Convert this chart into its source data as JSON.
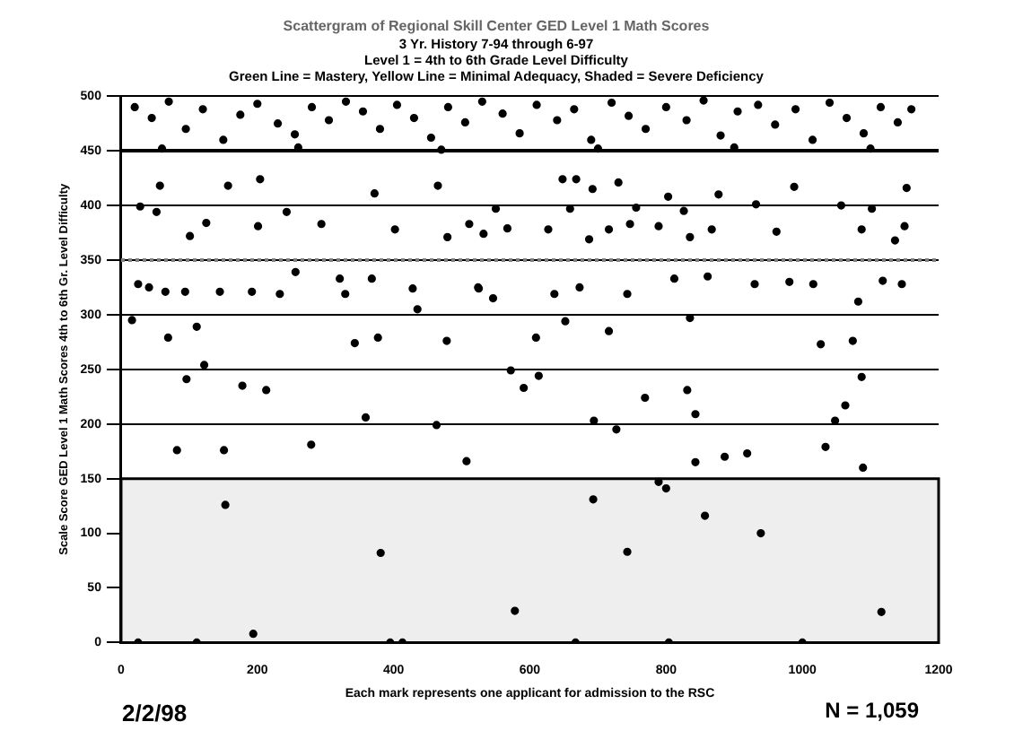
{
  "chart_data": {
    "type": "scatter",
    "title": "Scattergram of Regional Skill Center GED Level 1 Math Scores",
    "subtitle": "3 Yr. History 7-94 through 6-97\nLevel 1 = 4th to 6th Grade Level Difficulty\nGreen Line = Mastery, Yellow Line = Minimal Adequacy, Shaded = Severe Deficiency",
    "xlabel": "Each mark represents one applicant for admission to the RSC",
    "ylabel": "Scale Score GED Level 1 Math Scores 4th to 6th Gr. Level Difficulty",
    "annotations": [
      "2/2/98",
      "N = 1,059"
    ],
    "x": [
      28,
      57,
      52,
      101,
      125,
      157,
      204,
      201,
      243,
      294,
      372,
      465,
      511,
      402,
      479,
      25,
      41,
      65,
      94,
      145,
      192,
      233,
      256,
      321,
      368,
      329,
      428,
      435,
      525,
      16,
      69,
      111,
      122,
      96,
      178,
      213,
      343,
      377,
      478,
      359,
      463,
      82,
      151,
      279,
      507,
      153,
      381,
      194,
      111,
      25,
      395,
      413,
      648,
      668,
      692,
      730,
      803,
      877,
      988,
      1153,
      550,
      659,
      756,
      826,
      932,
      1057,
      1102,
      532,
      567,
      627,
      687,
      716,
      747,
      789,
      835,
      867,
      962,
      1087,
      1136,
      1150,
      524,
      546,
      636,
      673,
      743,
      812,
      861,
      930,
      981,
      1016,
      1118,
      1146,
      1082,
      652,
      835,
      609,
      716,
      1027,
      1074,
      572,
      613,
      591,
      831,
      769,
      843,
      1063,
      1048,
      1087,
      694,
      727,
      1034,
      886,
      919,
      843,
      1089,
      789,
      800,
      693,
      857,
      939,
      743,
      578,
      1116,
      667,
      804,
      1000,
      20,
      45,
      70,
      95,
      120,
      150,
      175,
      200,
      230,
      255,
      280,
      305,
      330,
      355,
      380,
      405,
      430,
      455,
      480,
      505,
      530,
      560,
      585,
      610,
      640,
      665,
      690,
      720,
      745,
      770,
      800,
      830,
      855,
      880,
      905,
      935,
      960,
      990,
      1015,
      1040,
      1065,
      1090,
      1115,
      1140,
      1160,
      60,
      260,
      470,
      700,
      900,
      1100
    ],
    "values": [
      399,
      418,
      394,
      372,
      384,
      418,
      424,
      381,
      394,
      383,
      411,
      418,
      383,
      378,
      371,
      328,
      325,
      321,
      321,
      321,
      321,
      319,
      339,
      333,
      333,
      319,
      324,
      305,
      324,
      295,
      279,
      289,
      254,
      241,
      235,
      231,
      274,
      279,
      276,
      206,
      199,
      176,
      176,
      181,
      166,
      126,
      82,
      8,
      0,
      0,
      0,
      0,
      424,
      424,
      415,
      421,
      408,
      410,
      417,
      416,
      397,
      397,
      398,
      395,
      401,
      400,
      397,
      374,
      379,
      378,
      369,
      378,
      383,
      381,
      371,
      378,
      376,
      378,
      368,
      381,
      325,
      315,
      319,
      325,
      319,
      333,
      335,
      328,
      330,
      328,
      331,
      328,
      312,
      294,
      297,
      279,
      285,
      273,
      276,
      249,
      244,
      233,
      231,
      224,
      209,
      217,
      203,
      243,
      203,
      195,
      179,
      170,
      173,
      165,
      160,
      147,
      141,
      131,
      116,
      100,
      83,
      29,
      28,
      0,
      0,
      0,
      490,
      480,
      495,
      470,
      488,
      460,
      483,
      493,
      475,
      465,
      490,
      478,
      495,
      486,
      470,
      492,
      480,
      462,
      490,
      476,
      495,
      484,
      466,
      492,
      478,
      488,
      460,
      494,
      482,
      470,
      490,
      478,
      496,
      464,
      486,
      492,
      474,
      488,
      460,
      494,
      480,
      466,
      490,
      476,
      488,
      452,
      453,
      451,
      452,
      453,
      452
    ],
    "color": "#000000",
    "marker": "circle",
    "xlim": [
      0,
      1200
    ],
    "xticks": [
      0,
      200,
      400,
      600,
      800,
      1000,
      1200
    ],
    "ylim": [
      0,
      500
    ],
    "yticks": [
      0,
      50,
      100,
      150,
      200,
      250,
      300,
      350,
      400,
      450,
      500
    ],
    "grid": "y",
    "legend": false,
    "ref_lines": [
      {
        "axis": "y",
        "value": 450,
        "color": "#000000",
        "line_style": "solid"
      },
      {
        "axis": "y",
        "value": 350,
        "color": "#808080",
        "line_style": "dotted"
      }
    ],
    "bands": [
      {
        "axis": "y",
        "from": 0,
        "to": 150,
        "color": "#eeeeee"
      }
    ]
  }
}
